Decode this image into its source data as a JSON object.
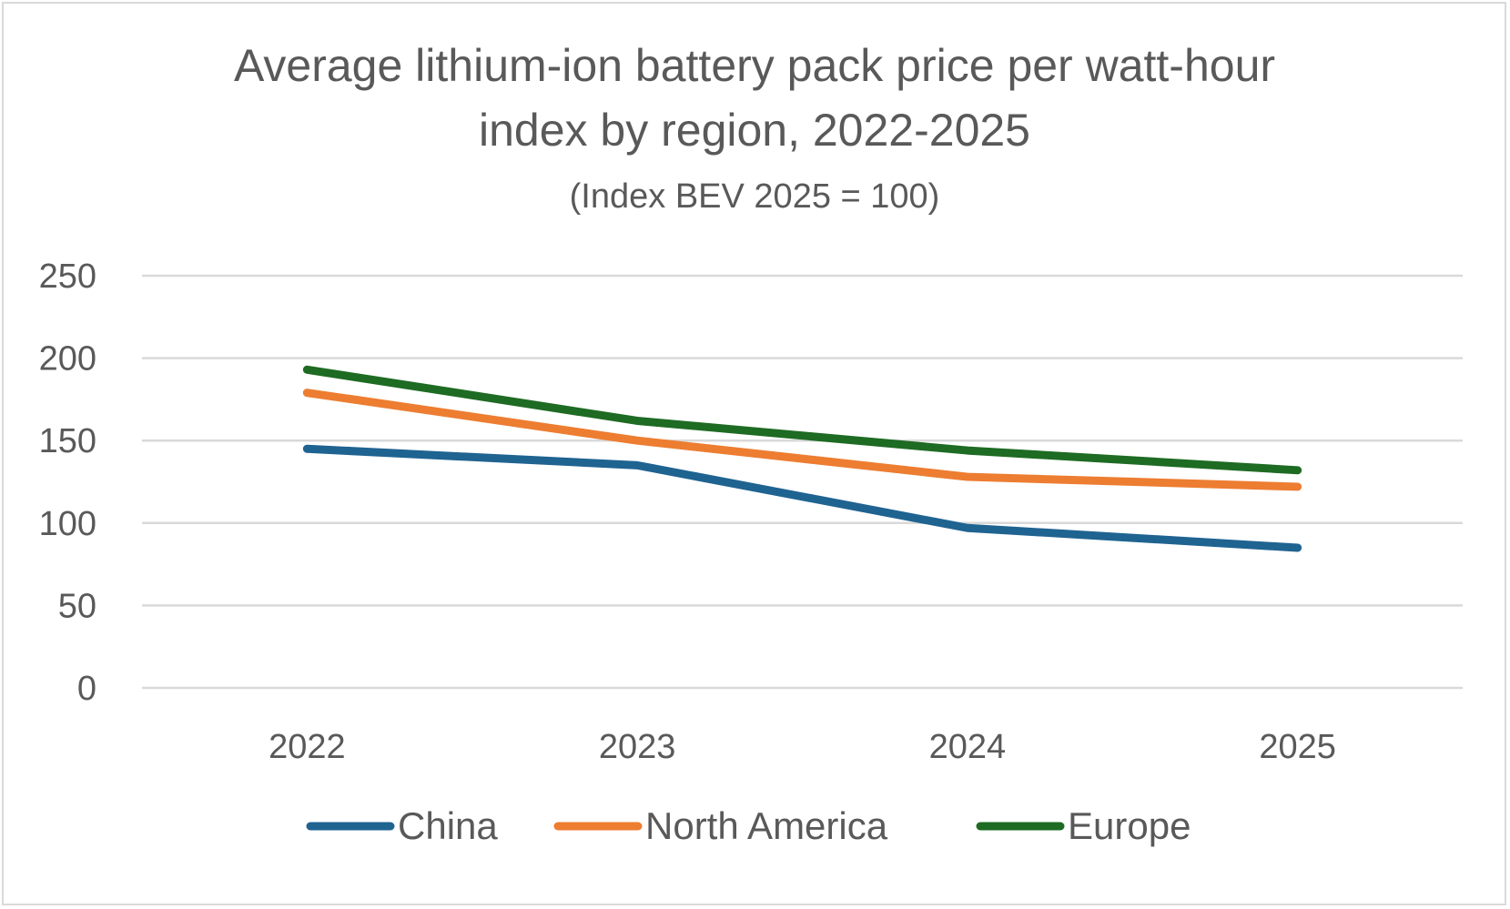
{
  "chart_data": {
    "type": "line",
    "title_lines": [
      "Average lithium-ion battery pack price per watt-hour",
      "index by region, 2022-2025"
    ],
    "subtitle": "(Index BEV 2025 = 100)",
    "xlabel": "",
    "ylabel": "",
    "categories": [
      "2022",
      "2023",
      "2024",
      "2025"
    ],
    "ylim": [
      0,
      250
    ],
    "yticks": [
      "0",
      "50",
      "100",
      "150",
      "200",
      "250"
    ],
    "grid": true,
    "legend_position": "bottom",
    "series": [
      {
        "name": "China",
        "color": "#1f6391",
        "values": [
          145,
          135,
          97,
          85
        ]
      },
      {
        "name": "North America",
        "color": "#ed7d31",
        "values": [
          179,
          150,
          128,
          122
        ]
      },
      {
        "name": "Europe",
        "color": "#1e6b23",
        "values": [
          193,
          162,
          144,
          132
        ]
      }
    ]
  }
}
